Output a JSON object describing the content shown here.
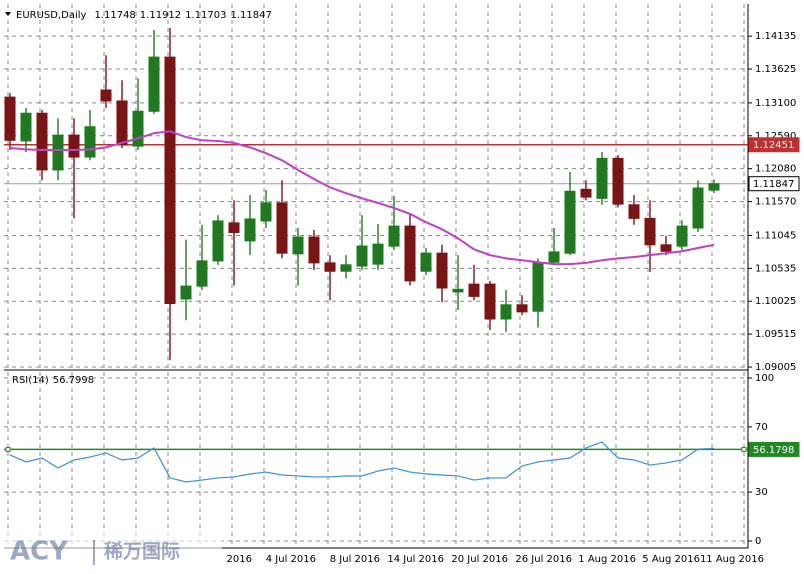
{
  "chart_data": [
    {
      "type": "candlestick",
      "symbol": "EURUSD,Daily",
      "categories": [
        null,
        null,
        null,
        null,
        null,
        null,
        null,
        null,
        null,
        null,
        null,
        null,
        "2016",
        null,
        null,
        null,
        "4 Jul 2016",
        null,
        null,
        null,
        "8 Jul 2016",
        null,
        null,
        null,
        "14 Jul 2016",
        null,
        null,
        null,
        "20 Jul 2016",
        null,
        null,
        null,
        "26 Jul 2016",
        null,
        null,
        null,
        "1 Aug 2016",
        null,
        null,
        null,
        "5 Aug 2016",
        null,
        null,
        null,
        "11 Aug 2016"
      ],
      "open": [
        1.1319,
        1.1251,
        1.1294,
        1.1206,
        1.126,
        1.1226,
        1.133,
        1.1313,
        1.1243,
        1.1297,
        1.1381,
        1.1006,
        1.1026,
        1.1065,
        1.1124,
        1.1096,
        1.1127,
        1.1155,
        1.1076,
        1.1102,
        1.1062,
        1.1049,
        1.1057,
        1.106,
        1.1088,
        1.1119,
        1.1049,
        1.1077,
        1.1017,
        1.1029,
        1.1029,
        1.0975,
        1.0997,
        1.0987,
        1.1063,
        1.1077,
        1.1176,
        1.1162,
        1.1224,
        1.1152,
        1.1131,
        1.109,
        1.1088,
        1.1116,
        1.11748
      ],
      "high": [
        1.1325,
        1.1302,
        1.1299,
        1.1286,
        1.1286,
        1.1299,
        1.1384,
        1.1345,
        1.1348,
        1.1423,
        1.1426,
        1.1098,
        1.1121,
        1.1136,
        1.1159,
        1.1167,
        1.1175,
        1.119,
        1.1116,
        1.1113,
        1.1074,
        1.1074,
        1.1136,
        1.1122,
        1.1166,
        1.1138,
        1.1085,
        1.109,
        1.1074,
        1.1059,
        1.1034,
        1.102,
        1.1012,
        1.1069,
        1.1116,
        1.1203,
        1.119,
        1.1234,
        1.1229,
        1.1167,
        1.1159,
        1.1104,
        1.1128,
        1.119,
        1.11912
      ],
      "low": [
        1.1237,
        1.1234,
        1.119,
        1.119,
        1.1131,
        1.1221,
        1.1302,
        1.124,
        1.1237,
        1.1293,
        1.0911,
        1.0973,
        1.102,
        1.1059,
        1.1027,
        1.1074,
        1.1116,
        1.1069,
        1.1027,
        1.1051,
        1.1004,
        1.1038,
        1.1051,
        1.1051,
        1.1082,
        1.1027,
        1.1043,
        1.1001,
        1.0989,
        1.1004,
        1.0958,
        1.0955,
        1.0981,
        1.0962,
        1.1059,
        1.1074,
        1.1159,
        1.1152,
        1.1148,
        1.1121,
        1.1048,
        1.1074,
        1.1082,
        1.111,
        1.11703
      ],
      "close": [
        1.1252,
        1.1294,
        1.1206,
        1.126,
        1.1226,
        1.1273,
        1.1313,
        1.1245,
        1.1297,
        1.1381,
        1.0999,
        1.1026,
        1.1065,
        1.1127,
        1.1109,
        1.113,
        1.1155,
        1.1077,
        1.1102,
        1.1062,
        1.1049,
        1.1059,
        1.1088,
        1.1091,
        1.1119,
        1.1034,
        1.1077,
        1.1023,
        1.1021,
        1.101,
        1.0975,
        1.0997,
        1.0986,
        1.1062,
        1.1079,
        1.1173,
        1.1164,
        1.1224,
        1.1153,
        1.1131,
        1.109,
        1.108,
        1.1119,
        1.1178,
        1.11847
      ],
      "up_color": "#1f7a1f",
      "down_color": "#7b1414",
      "overlay": {
        "color": "#c040c8",
        "values": [
          1.124,
          1.1238,
          1.1237,
          1.1237,
          1.1237,
          1.1238,
          1.1241,
          1.1248,
          1.1255,
          1.1263,
          1.1266,
          1.1257,
          1.1252,
          1.1251,
          1.1248,
          1.1241,
          1.1232,
          1.1221,
          1.1206,
          1.1192,
          1.1179,
          1.117,
          1.1162,
          1.1155,
          1.1147,
          1.1138,
          1.1125,
          1.1114,
          1.11,
          1.1083,
          1.1074,
          1.1069,
          1.1066,
          1.1063,
          1.106,
          1.106,
          1.1062,
          1.1066,
          1.1069,
          1.1071,
          1.1074,
          1.1077,
          1.108,
          1.1085,
          1.109
        ]
      },
      "level": {
        "value": 1.12451,
        "color": "#c03030"
      },
      "ylim": [
        1.0899,
        1.1454
      ],
      "yticks": [
        1.14135,
        1.13625,
        {
          "value": 1.131,
          "label": "1.13100"
        },
        {
          "value": 1.1259,
          "label": "1.12590"
        },
        {
          "value": 1.1208,
          "label": "1.12080"
        },
        {
          "value": 1.1157,
          "label": "1.11570"
        },
        1.11045,
        1.10535,
        1.10025,
        1.09515,
        1.09005
      ],
      "grid": true
    },
    {
      "type": "line",
      "series": [
        {
          "name": "RSI(14)",
          "color": "#3a8fd8",
          "values": [
            52.8,
            48.5,
            50.9,
            44.8,
            49.7,
            51.5,
            54.0,
            49.7,
            50.9,
            57.1,
            38.7,
            36.2,
            37.4,
            38.7,
            39.3,
            41.1,
            42.3,
            40.5,
            39.9,
            39.3,
            39.3,
            39.9,
            39.9,
            42.9,
            44.8,
            42.3,
            41.1,
            40.5,
            39.9,
            37.4,
            38.7,
            38.7,
            46.0,
            48.5,
            49.7,
            50.9,
            57.1,
            60.7,
            50.9,
            49.7,
            46.6,
            47.9,
            49.7,
            56.4,
            56.7998
          ]
        }
      ],
      "level": {
        "value": 56.1798,
        "color": "#1f8a1f"
      },
      "ylim": [
        0,
        100
      ],
      "yticks": [
        100,
        70,
        30,
        0
      ],
      "grid": true
    }
  ],
  "watermark": {
    "brand": "ACY",
    "local": "稀万国际"
  }
}
